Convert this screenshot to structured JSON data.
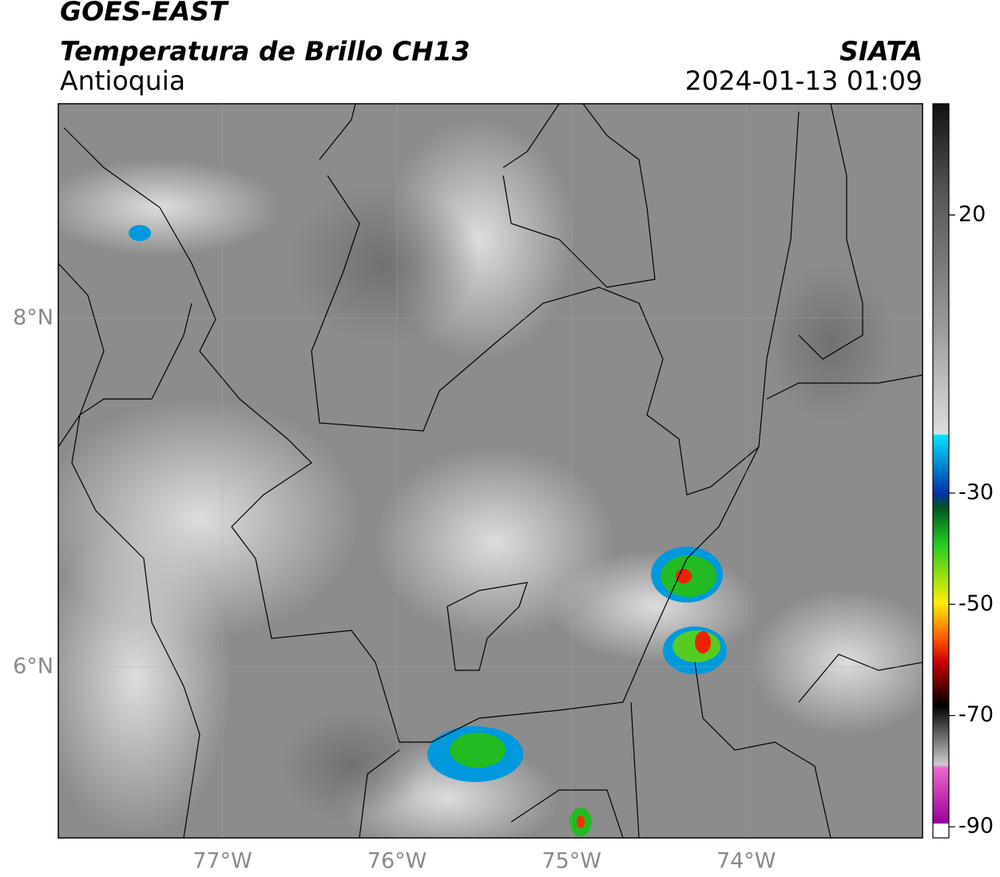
{
  "header": {
    "satellite": "GOES-EAST",
    "product": "Temperatura de Brillo CH13",
    "region": "Antioquia",
    "source": "SIATA",
    "datetime": "2024-01-13 01:09"
  },
  "map": {
    "xlim": [
      -77.94,
      -72.99
    ],
    "ylim": [
      5.02,
      9.23
    ],
    "xticks": [
      {
        "value": -77,
        "label": "77°W"
      },
      {
        "value": -76,
        "label": "76°W"
      },
      {
        "value": -75,
        "label": "75°W"
      },
      {
        "value": -74,
        "label": "74°W"
      }
    ],
    "yticks": [
      {
        "value": 6,
        "label": "6°N"
      },
      {
        "value": 8,
        "label": "8°N"
      }
    ],
    "grid": true
  },
  "colorbar": {
    "lim": [
      -92,
      40
    ],
    "ticks": [
      20,
      -30,
      -50,
      -70,
      -90
    ]
  }
}
